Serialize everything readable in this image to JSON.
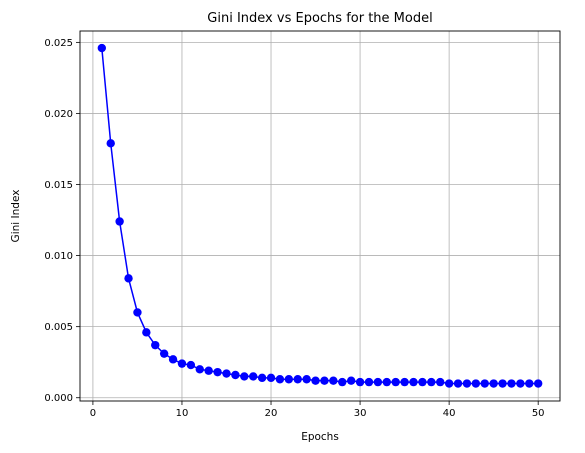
{
  "chart_data": {
    "type": "line",
    "title": "Gini Index vs Epochs for the Model",
    "xlabel": "Epochs",
    "ylabel": "Gini Index",
    "xlim": [
      -1.45,
      52.45
    ],
    "ylim": [
      -0.00023,
      0.0258
    ],
    "xticks": [
      0,
      10,
      20,
      30,
      40,
      50
    ],
    "xtick_labels": [
      "0",
      "10",
      "20",
      "30",
      "40",
      "50"
    ],
    "yticks": [
      0.0,
      0.005,
      0.01,
      0.015,
      0.02,
      0.025
    ],
    "ytick_labels": [
      "0.000",
      "0.005",
      "0.010",
      "0.015",
      "0.020",
      "0.025"
    ],
    "grid": true,
    "series": [
      {
        "color": "#0000ff",
        "marker": "circle",
        "x": [
          1,
          2,
          3,
          4,
          5,
          6,
          7,
          8,
          9,
          10,
          11,
          12,
          13,
          14,
          15,
          16,
          17,
          18,
          19,
          20,
          21,
          22,
          23,
          24,
          25,
          26,
          27,
          28,
          29,
          30,
          31,
          32,
          33,
          34,
          35,
          36,
          37,
          38,
          39,
          40,
          41,
          42,
          43,
          44,
          45,
          46,
          47,
          48,
          49,
          50
        ],
        "y": [
          0.0246,
          0.0179,
          0.0124,
          0.0084,
          0.006,
          0.0046,
          0.0037,
          0.0031,
          0.0027,
          0.0024,
          0.0023,
          0.002,
          0.0019,
          0.0018,
          0.0017,
          0.0016,
          0.0015,
          0.0015,
          0.0014,
          0.0014,
          0.0013,
          0.0013,
          0.0013,
          0.0013,
          0.0012,
          0.0012,
          0.0012,
          0.0011,
          0.0012,
          0.0011,
          0.0011,
          0.0011,
          0.0011,
          0.0011,
          0.0011,
          0.0011,
          0.0011,
          0.0011,
          0.0011,
          0.001,
          0.001,
          0.001,
          0.001,
          0.001,
          0.001,
          0.001,
          0.001,
          0.001,
          0.001,
          0.001
        ]
      }
    ]
  }
}
